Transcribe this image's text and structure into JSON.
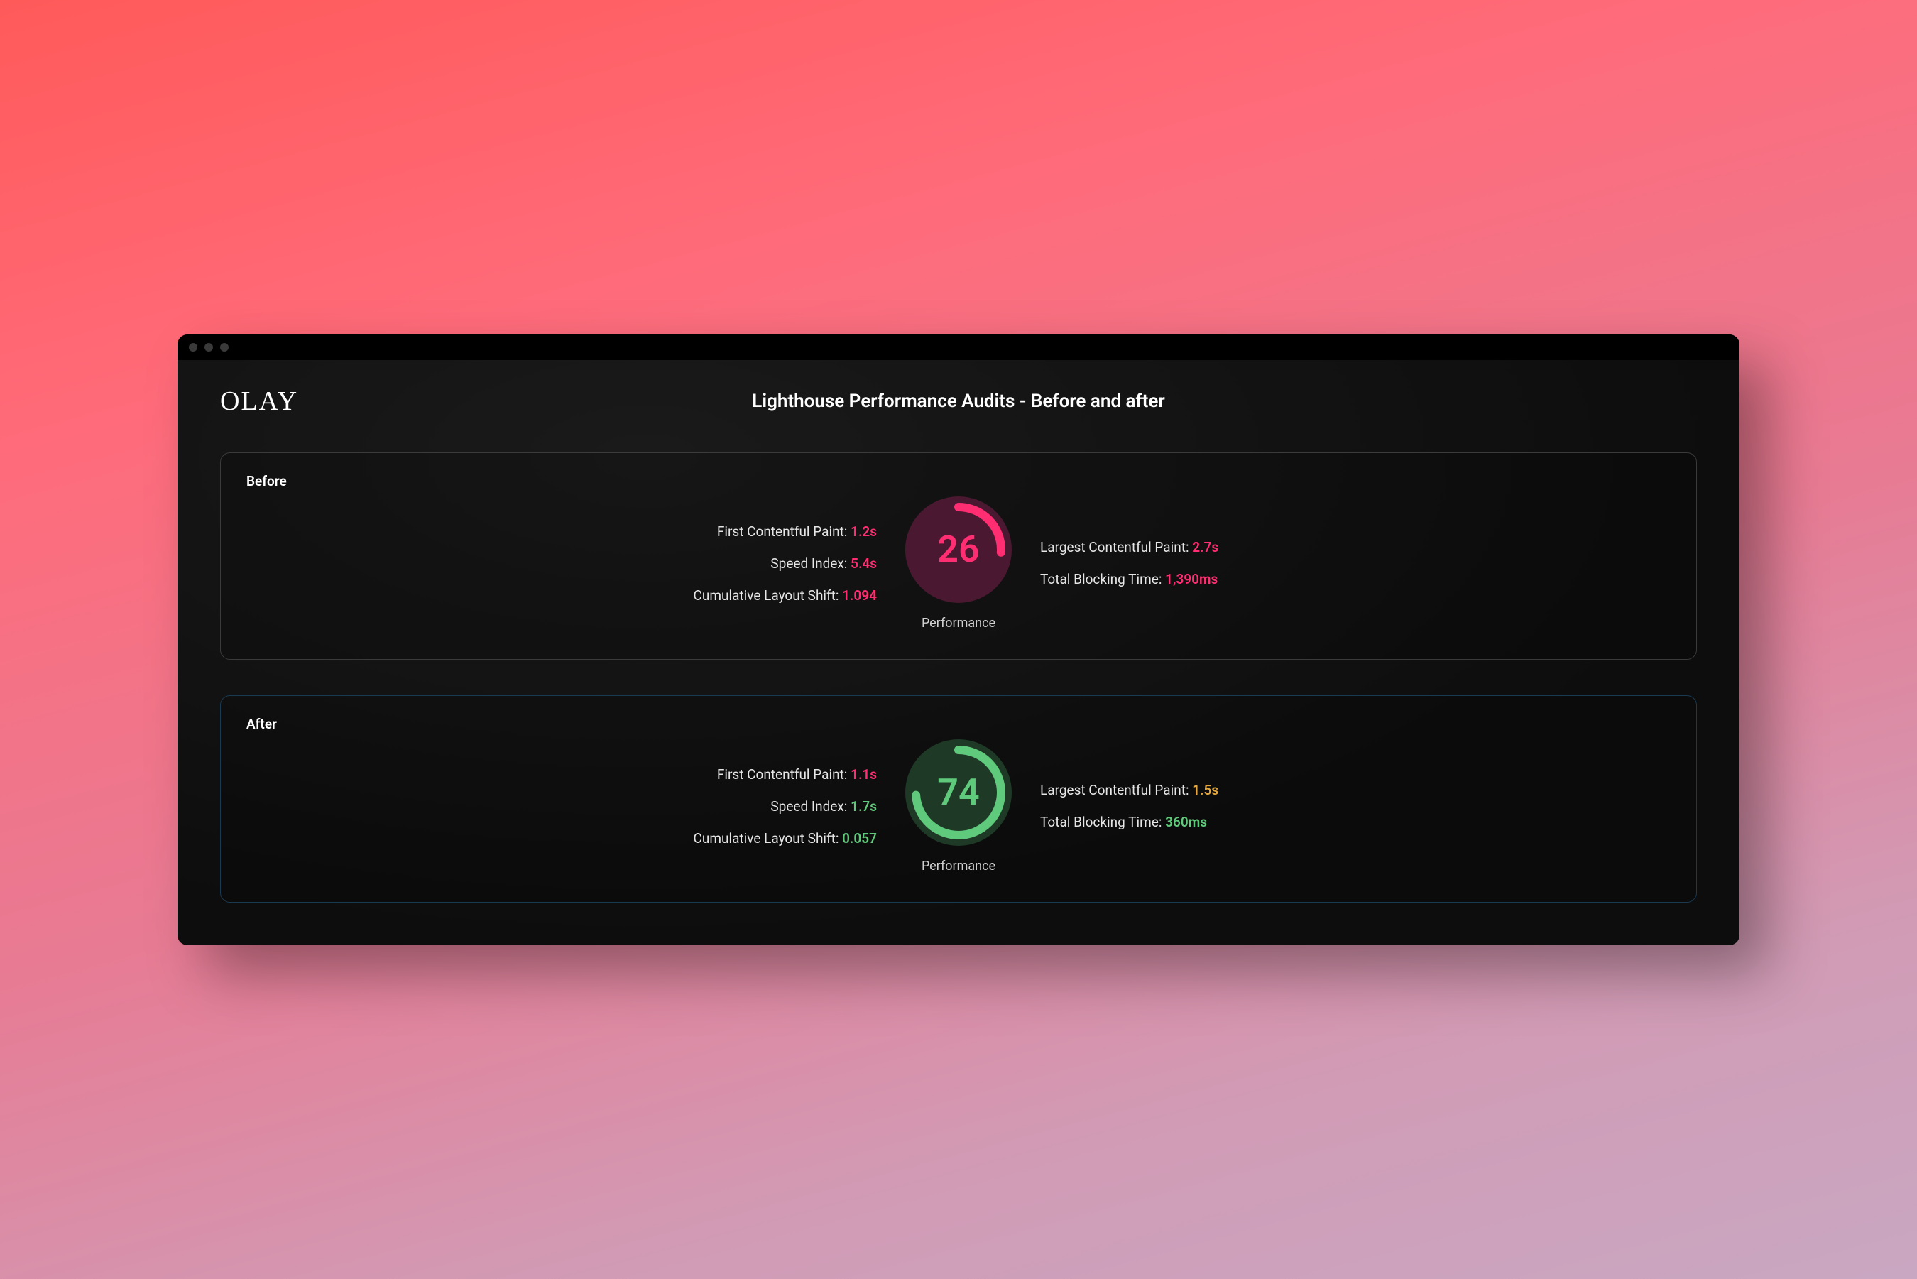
{
  "brand": "OLAY",
  "title": "Lighthouse Performance Audits - Before and after",
  "colors": {
    "page_bg_gradient_top": "#ff5a5a",
    "page_bg_gradient_bottom": "#c9a7c2",
    "window_bg": "#0d0d0d",
    "titlebar_bg": "#000000",
    "traffic_dot": "#3a3a3a",
    "text_primary": "#ffffff",
    "text_muted": "#d0d0d0",
    "metric_label": "#e6e6e6"
  },
  "panels": [
    {
      "key": "before",
      "title": "Before",
      "border_color": "#3b3b3b",
      "score": 26,
      "score_color": "#ff2d71",
      "gauge_fill_bg": "#4a1830",
      "gauge_arc_color": "#ff2d71",
      "gauge_arc_width": 12,
      "gauge_label": "Performance",
      "left_metrics": [
        {
          "label": "First Contentful Paint:",
          "value": "1.2s",
          "value_color": "#ff2d71"
        },
        {
          "label": "Speed Index:",
          "value": "5.4s",
          "value_color": "#ff2d71"
        },
        {
          "label": "Cumulative Layout Shift:",
          "value": "1.094",
          "value_color": "#ff2d71"
        }
      ],
      "right_metrics": [
        {
          "label": "Largest Contentful Paint:",
          "value": "2.7s",
          "value_color": "#ff2d71"
        },
        {
          "label": "Total Blocking Time:",
          "value": "1,390ms",
          "value_color": "#ff2d71"
        }
      ]
    },
    {
      "key": "after",
      "title": "After",
      "border_color": "#1a3a52",
      "score": 74,
      "score_color": "#5fca7b",
      "gauge_fill_bg": "#1e3a26",
      "gauge_arc_color": "#5fca7b",
      "gauge_arc_width": 12,
      "gauge_label": "Performance",
      "left_metrics": [
        {
          "label": "First Contentful Paint:",
          "value": "1.1s",
          "value_color": "#ff2d71"
        },
        {
          "label": "Speed Index:",
          "value": "1.7s",
          "value_color": "#5fca7b"
        },
        {
          "label": "Cumulative Layout Shift:",
          "value": "0.057",
          "value_color": "#5fca7b"
        }
      ],
      "right_metrics": [
        {
          "label": "Largest Contentful Paint:",
          "value": "1.5s",
          "value_color": "#e6a73c"
        },
        {
          "label": "Total Blocking Time:",
          "value": "360ms",
          "value_color": "#5fca7b"
        }
      ]
    }
  ]
}
